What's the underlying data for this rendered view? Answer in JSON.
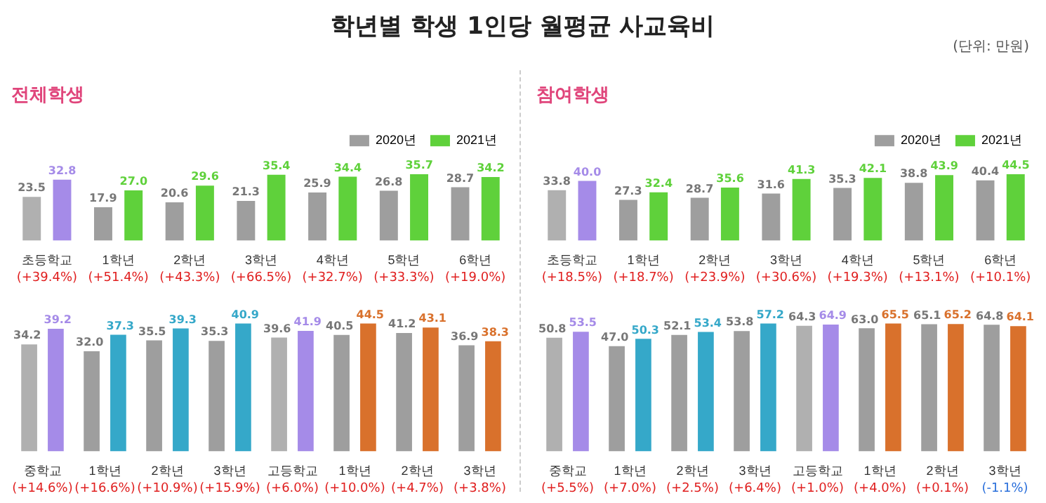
{
  "chart_data": [
    {
      "type": "other",
      "title": "학년별 학생 1인당 월평균 사교육비",
      "annotations": [
        "(단위: 만원)"
      ]
    },
    {
      "type": "bar",
      "title": "전체학생",
      "categories": [
        "초등학교",
        "1학년",
        "2학년",
        "3학년",
        "4학년",
        "5학년",
        "6학년"
      ],
      "legend": "top right",
      "grid": false,
      "series": [
        {
          "name": "2020년",
          "color": "#9e9e9e",
          "colors": [
            "#b0b0b0",
            "#9e9e9e",
            "#9e9e9e",
            "#9e9e9e",
            "#9e9e9e",
            "#9e9e9e",
            "#9e9e9e"
          ],
          "values": [
            23.5,
            17.9,
            20.6,
            21.3,
            25.9,
            26.8,
            28.7
          ],
          "value_labels": [
            "23.5",
            "17.9",
            "20.6",
            "21.3",
            "25.9",
            "26.8",
            "28.7"
          ]
        },
        {
          "name": "2021년",
          "color": "#5fd13b",
          "colors": [
            "#a58be8",
            "#5fd13b",
            "#5fd13b",
            "#5fd13b",
            "#5fd13b",
            "#5fd13b",
            "#5fd13b"
          ],
          "values": [
            32.8,
            27.0,
            29.6,
            35.4,
            34.4,
            35.7,
            34.2
          ],
          "value_labels": [
            "32.8",
            "27.0",
            "29.6",
            "35.4",
            "34.4",
            "35.7",
            "34.2"
          ]
        }
      ],
      "annotations": [
        "(+39.4%)",
        "(+51.4%)",
        "(+43.3%)",
        "(+66.5%)",
        "(+32.7%)",
        "(+33.3%)",
        "(+19.0%)"
      ]
    },
    {
      "type": "bar",
      "categories": [
        "중학교",
        "1학년",
        "2학년",
        "3학년"
      ],
      "legend": false,
      "grid": false,
      "series": [
        {
          "color": "#9e9e9e",
          "colors": [
            "#b0b0b0",
            "#9e9e9e",
            "#9e9e9e",
            "#9e9e9e"
          ],
          "values": [
            34.2,
            32.0,
            35.5,
            35.3
          ],
          "value_labels": [
            "34.2",
            "32.0",
            "35.5",
            "35.3"
          ]
        },
        {
          "color": "#35a8c9",
          "colors": [
            "#a58be8",
            "#35a8c9",
            "#35a8c9",
            "#35a8c9"
          ],
          "values": [
            39.2,
            37.3,
            39.3,
            40.9
          ],
          "value_labels": [
            "39.2",
            "37.3",
            "39.3",
            "40.9"
          ]
        }
      ],
      "annotations": [
        "(+14.6%)",
        "(+16.6%)",
        "(+10.9%)",
        "(+15.9%)"
      ]
    },
    {
      "type": "bar",
      "categories": [
        "고등학교",
        "1학년",
        "2학년",
        "3학년"
      ],
      "legend": false,
      "grid": false,
      "series": [
        {
          "color": "#9e9e9e",
          "colors": [
            "#b0b0b0",
            "#9e9e9e",
            "#9e9e9e",
            "#9e9e9e"
          ],
          "values": [
            39.6,
            40.5,
            41.2,
            36.9
          ],
          "value_labels": [
            "39.6",
            "40.5",
            "41.2",
            "36.9"
          ]
        },
        {
          "color": "#d9712c",
          "colors": [
            "#a58be8",
            "#d9712c",
            "#d9712c",
            "#d9712c"
          ],
          "values": [
            41.9,
            44.5,
            43.1,
            38.3
          ],
          "value_labels": [
            "41.9",
            "44.5",
            "43.1",
            "38.3"
          ]
        }
      ],
      "annotations": [
        "(+6.0%)",
        "(+10.0%)",
        "(+4.7%)",
        "(+3.8%)"
      ]
    },
    {
      "type": "bar",
      "title": "참여학생",
      "categories": [
        "초등학교",
        "1학년",
        "2학년",
        "3학년",
        "4학년",
        "5학년",
        "6학년"
      ],
      "legend": "top right",
      "grid": false,
      "series": [
        {
          "name": "2020년",
          "color": "#9e9e9e",
          "colors": [
            "#b0b0b0",
            "#9e9e9e",
            "#9e9e9e",
            "#9e9e9e",
            "#9e9e9e",
            "#9e9e9e",
            "#9e9e9e"
          ],
          "values": [
            33.8,
            27.3,
            28.7,
            31.6,
            35.3,
            38.8,
            40.4
          ],
          "value_labels": [
            "33.8",
            "27.3",
            "28.7",
            "31.6",
            "35.3",
            "38.8",
            "40.4"
          ]
        },
        {
          "name": "2021년",
          "color": "#5fd13b",
          "colors": [
            "#a58be8",
            "#5fd13b",
            "#5fd13b",
            "#5fd13b",
            "#5fd13b",
            "#5fd13b",
            "#5fd13b"
          ],
          "values": [
            40.0,
            32.4,
            35.6,
            41.3,
            42.1,
            43.9,
            44.5
          ],
          "value_labels": [
            "40.0",
            "32.4",
            "35.6",
            "41.3",
            "42.1",
            "43.9",
            "44.5"
          ]
        }
      ],
      "annotations": [
        "(+18.5%)",
        "(+18.7%)",
        "(+23.9%)",
        "(+30.6%)",
        "(+19.3%)",
        "(+13.1%)",
        "(+10.1%)"
      ]
    },
    {
      "type": "bar",
      "categories": [
        "중학교",
        "1학년",
        "2학년",
        "3학년"
      ],
      "legend": false,
      "grid": false,
      "series": [
        {
          "color": "#9e9e9e",
          "colors": [
            "#b0b0b0",
            "#9e9e9e",
            "#9e9e9e",
            "#9e9e9e"
          ],
          "values": [
            50.8,
            47.0,
            52.1,
            53.8
          ],
          "value_labels": [
            "50.8",
            "47.0",
            "52.1",
            "53.8"
          ]
        },
        {
          "color": "#35a8c9",
          "colors": [
            "#a58be8",
            "#35a8c9",
            "#35a8c9",
            "#35a8c9"
          ],
          "values": [
            53.5,
            50.3,
            53.4,
            57.2
          ],
          "value_labels": [
            "53.5",
            "50.3",
            "53.4",
            "57.2"
          ]
        }
      ],
      "annotations": [
        "(+5.5%)",
        "(+7.0%)",
        "(+2.5%)",
        "(+6.4%)"
      ]
    },
    {
      "type": "bar",
      "categories": [
        "고등학교",
        "1학년",
        "2학년",
        "3학년"
      ],
      "legend": false,
      "grid": false,
      "series": [
        {
          "color": "#9e9e9e",
          "colors": [
            "#b0b0b0",
            "#9e9e9e",
            "#9e9e9e",
            "#9e9e9e"
          ],
          "values": [
            64.3,
            63.0,
            65.1,
            64.8
          ],
          "value_labels": [
            "64.3",
            "63.0",
            "65.1",
            "64.8"
          ]
        },
        {
          "color": "#d9712c",
          "colors": [
            "#a58be8",
            "#d9712c",
            "#d9712c",
            "#d9712c"
          ],
          "values": [
            64.9,
            65.5,
            65.2,
            64.1
          ],
          "value_labels": [
            "64.9",
            "65.5",
            "65.2",
            "64.1"
          ]
        }
      ],
      "annotations": [
        "(+1.0%)",
        "(+4.0%)",
        "(+0.1%)",
        "(-1.1%)"
      ]
    }
  ]
}
